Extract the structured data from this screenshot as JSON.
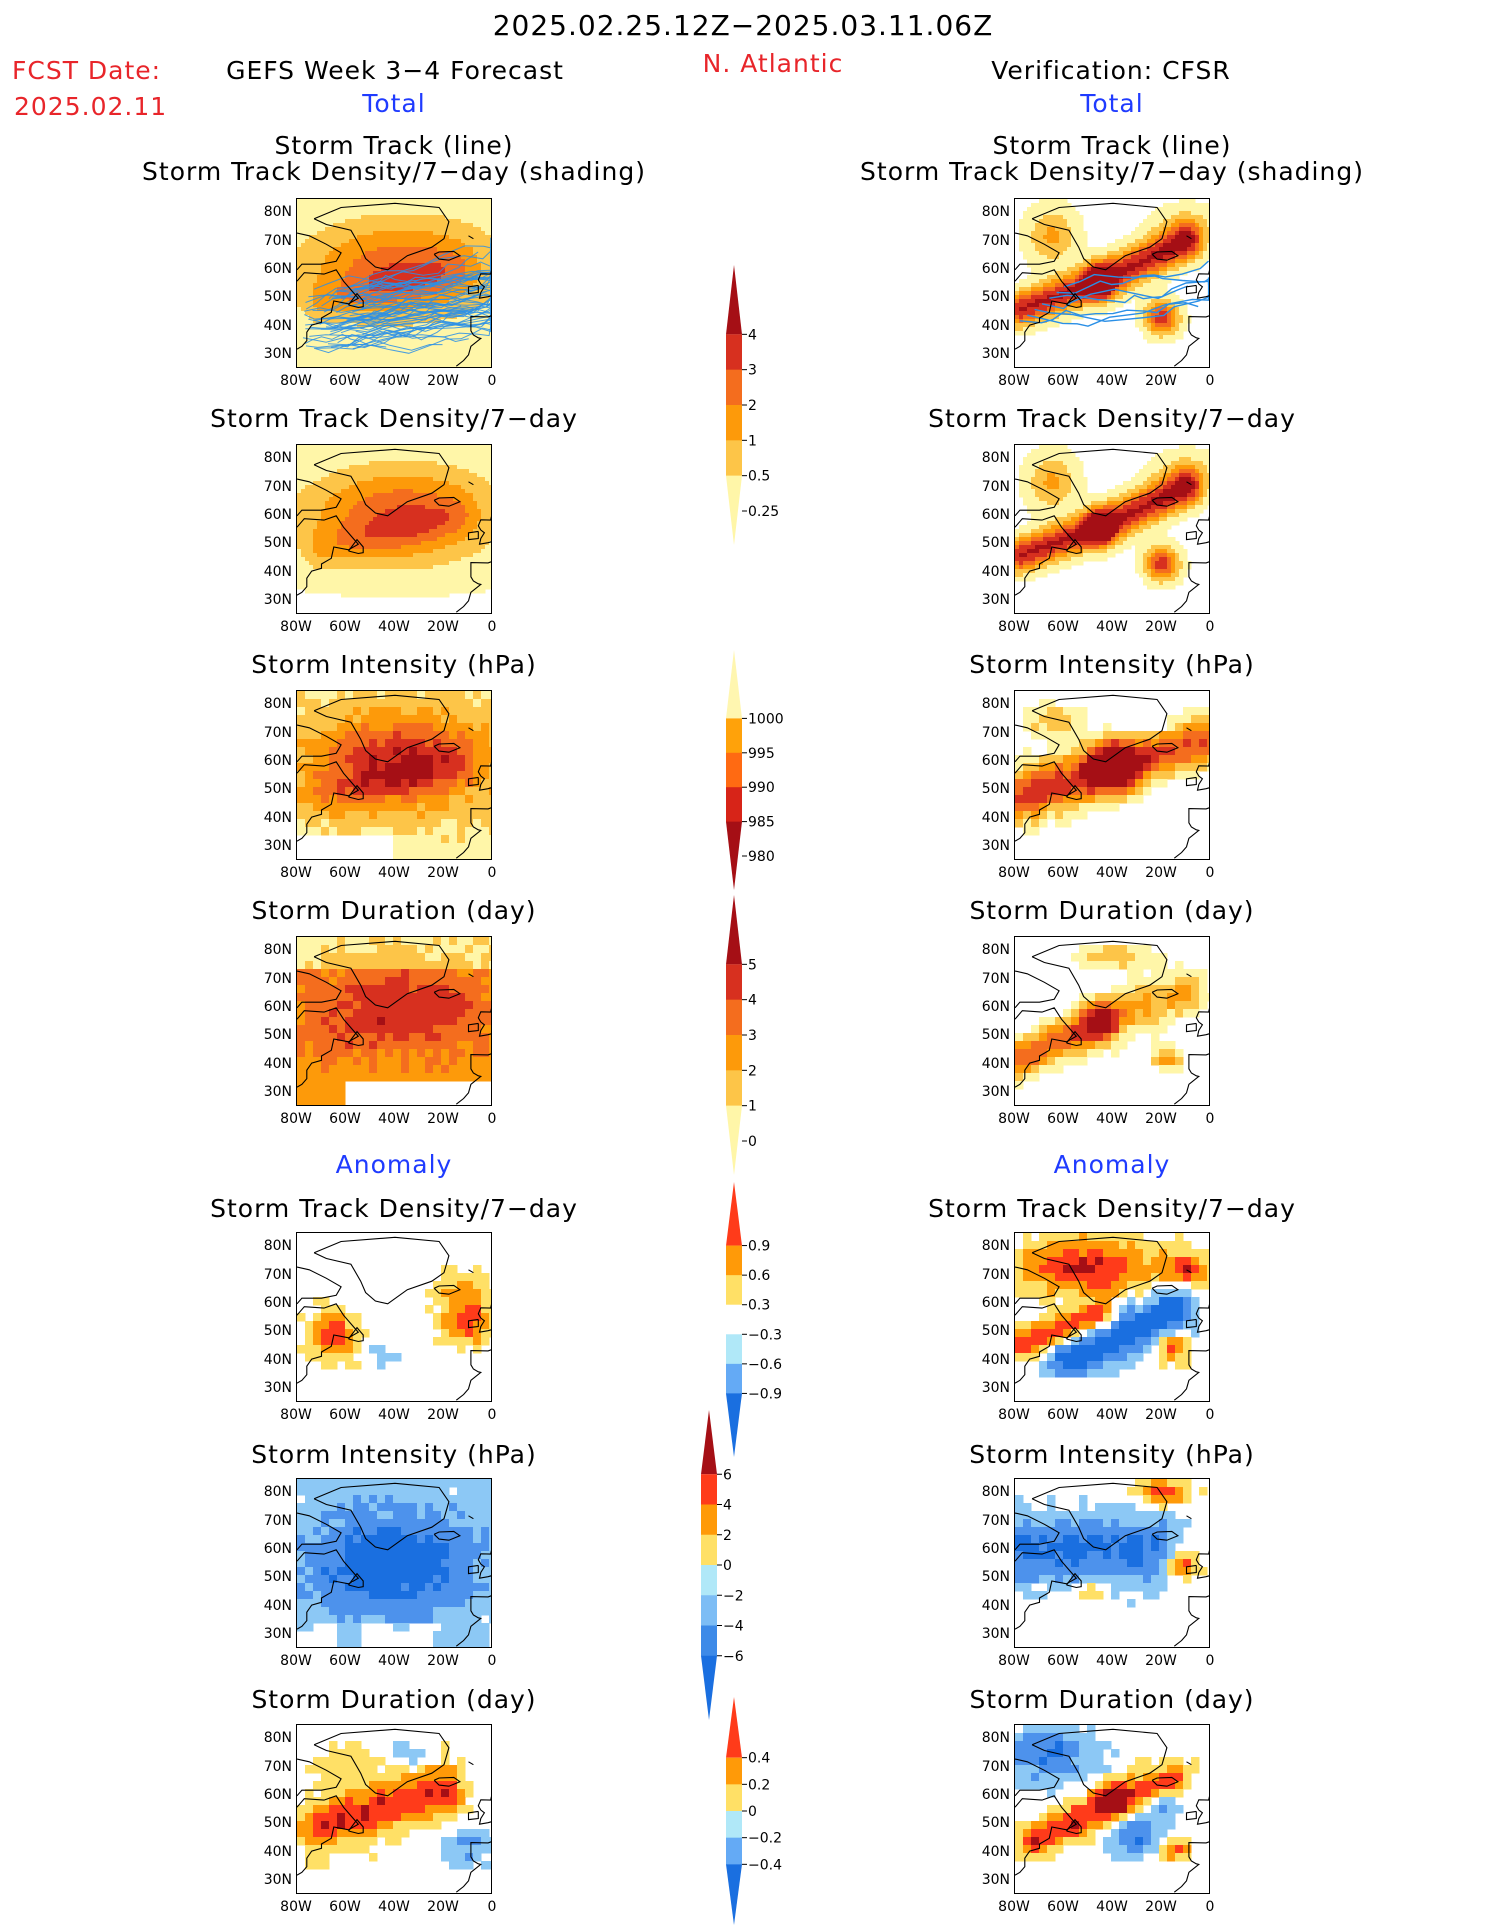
{
  "header": {
    "date_range": "2025.02.25.12Z−2025.03.11.06Z",
    "fcst_label": "FCST Date:",
    "fcst_date": "2025.02.11",
    "left_title": "GEFS Week 3−4 Forecast",
    "region": "N. Atlantic",
    "right_title": "Verification: CFSR",
    "total_left": "Total",
    "total_right": "Total",
    "anomaly_left": "Anomaly",
    "anomaly_right": "Anomaly"
  },
  "panel_titles": {
    "track_line": "Storm Track (line)",
    "track_shading": "Storm Track Density/7−day (shading)",
    "density": "Storm Track Density/7−day",
    "intensity": "Storm Intensity (hPa)",
    "duration": "Storm Duration (day)"
  },
  "axes": {
    "lat_ticks": [
      "80N",
      "70N",
      "60N",
      "50N",
      "40N",
      "30N"
    ],
    "lon_ticks": [
      "80W",
      "60W",
      "40W",
      "20W",
      "0"
    ]
  },
  "colorbars": {
    "density_total": {
      "labels": [
        "4",
        "3",
        "2",
        "1",
        "0.5",
        "0.25"
      ],
      "colors": [
        "#a50f15",
        "#d7301f",
        "#f46d1e",
        "#fd9a0a",
        "#fdc548",
        "#fff6a8"
      ]
    },
    "intensity_total": {
      "labels": [
        "1000",
        "995",
        "990",
        "985",
        "980"
      ],
      "colors": [
        "#fff6b0",
        "#ffa20a",
        "#ff6a12",
        "#d72418",
        "#a50f15"
      ]
    },
    "duration_total": {
      "labels": [
        "5",
        "4",
        "3",
        "2",
        "1",
        "0"
      ],
      "colors": [
        "#a50f15",
        "#d7301f",
        "#f46d1e",
        "#fd9a0a",
        "#fdc548",
        "#fff6a8"
      ]
    },
    "density_anom": {
      "labels": [
        "0.9",
        "0.6",
        "0.3",
        "−0.3",
        "−0.6",
        "−0.9"
      ],
      "colors": [
        "#ff3b1a",
        "#ff9a08",
        "#ffe066",
        "#ffffff",
        "#b0e8f8",
        "#64aaf5",
        "#1a6fe0"
      ]
    },
    "intensity_anom": {
      "labels": [
        "6",
        "4",
        "2",
        "0",
        "−2",
        "−4",
        "−6"
      ],
      "colors": [
        "#a50f15",
        "#ff3b1a",
        "#ff9a08",
        "#ffe066",
        "#b0e8f8",
        "#7dbdf5",
        "#3d8ae8",
        "#1a6fe0"
      ]
    },
    "duration_anom": {
      "labels": [
        "0.4",
        "0.2",
        "0",
        "−0.2",
        "−0.4"
      ],
      "colors": [
        "#ff3b1a",
        "#ff9a08",
        "#ffe066",
        "#b0e8f8",
        "#64aaf5",
        "#1a6fe0"
      ]
    }
  },
  "palettes": {
    "total": [
      "#ffffff",
      "#fff6a8",
      "#fdc548",
      "#fd9a0a",
      "#f46d1e",
      "#d7301f",
      "#a50f15"
    ],
    "anom": [
      "#1a6fe0",
      "#4d92ec",
      "#8cc8f5",
      "#ffffff",
      "#ffe066",
      "#ff9a08",
      "#ff3b1a",
      "#a50f15"
    ],
    "track_line": "#2a8fe6"
  }
}
